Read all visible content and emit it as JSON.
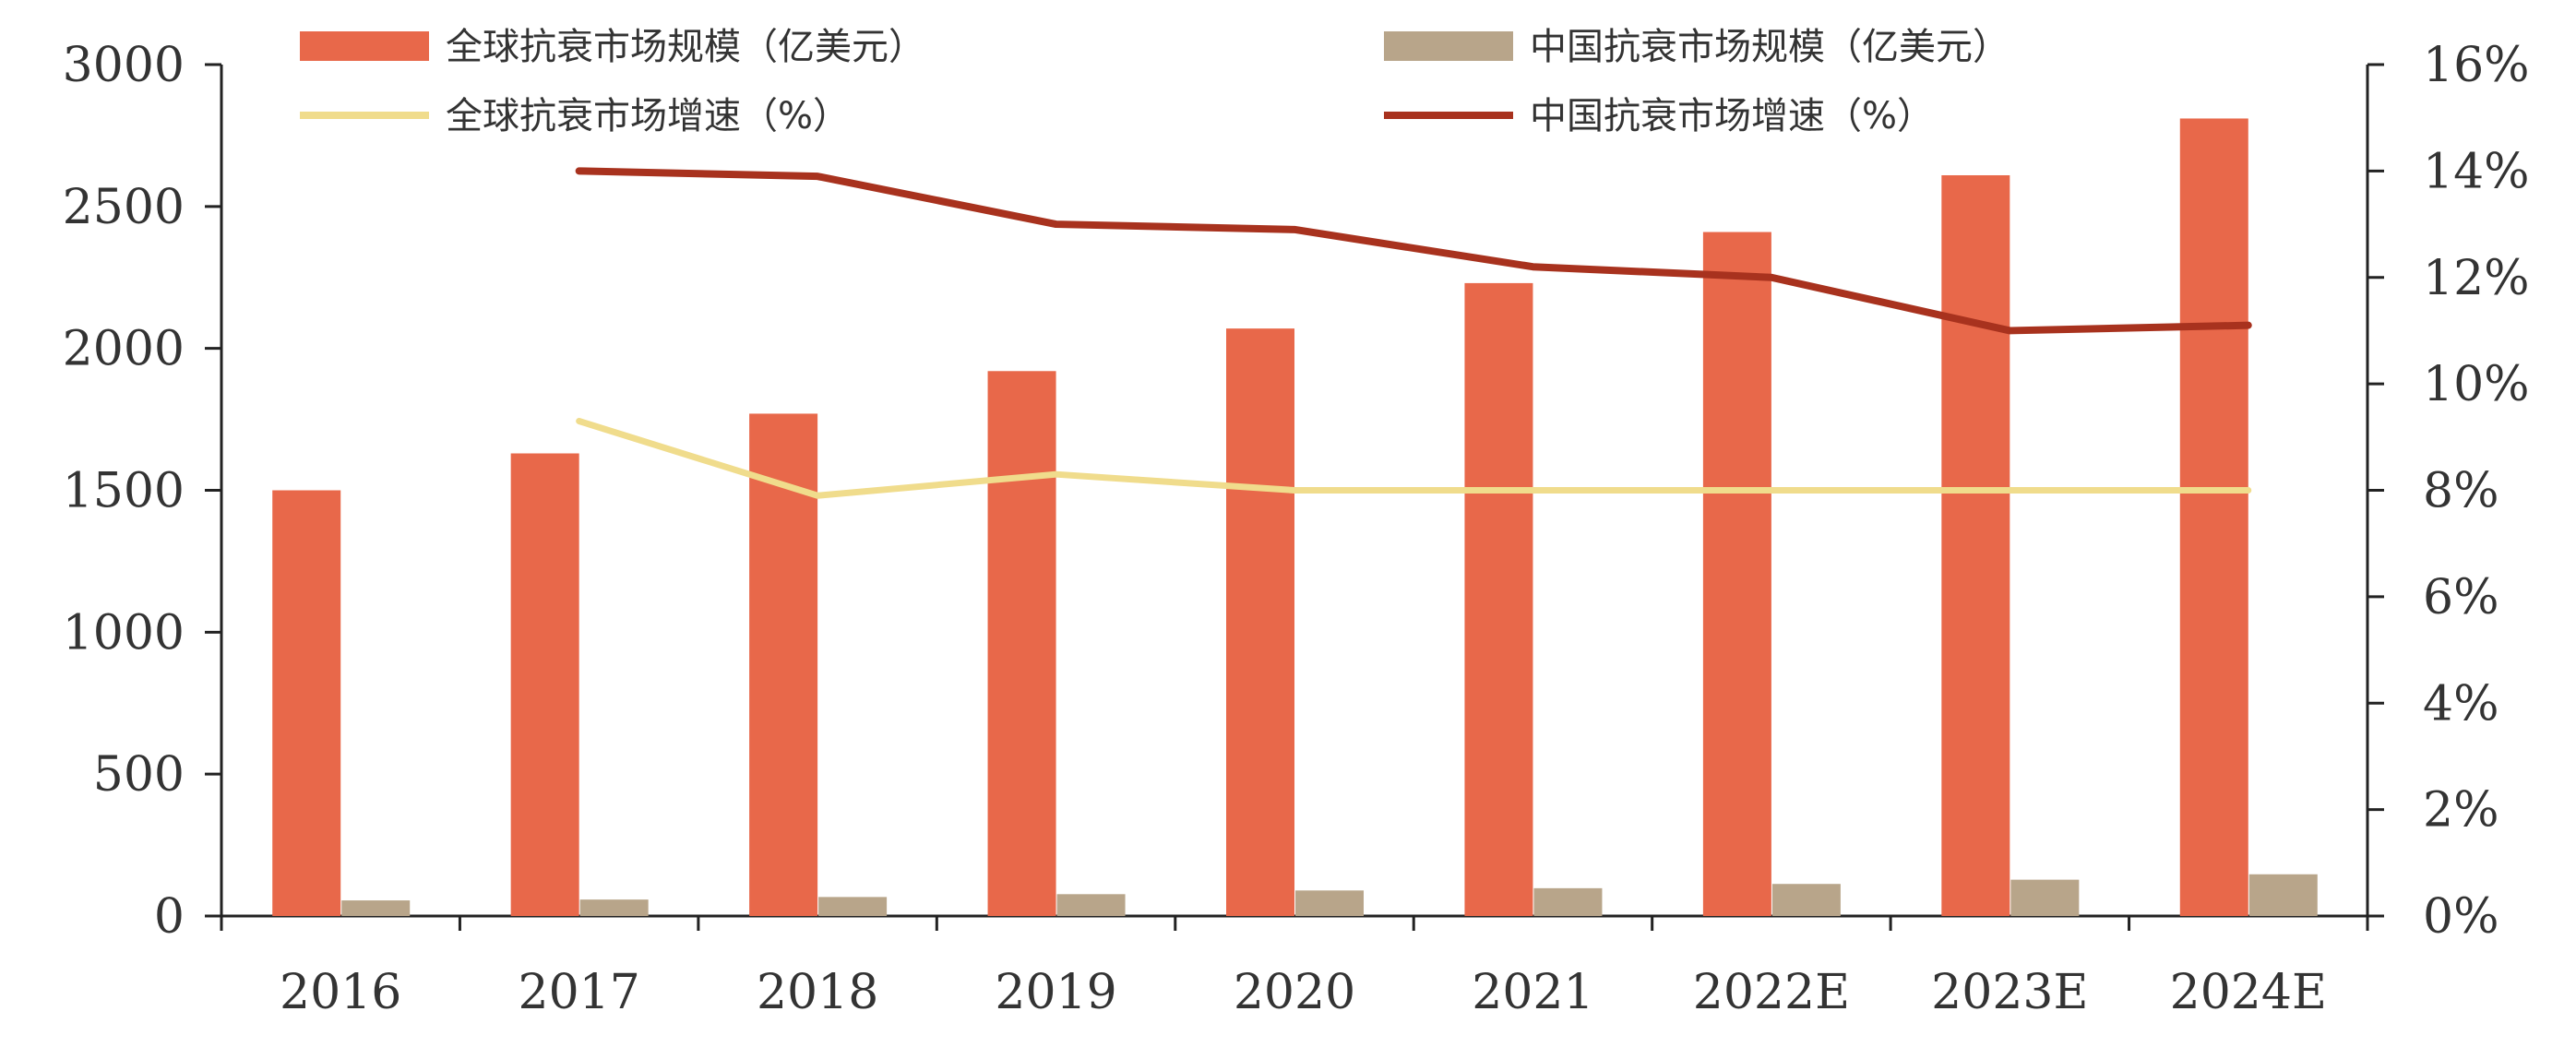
{
  "chart_data": {
    "type": "bar",
    "categories": [
      "2016",
      "2017",
      "2018",
      "2019",
      "2020",
      "2021",
      "2022E",
      "2023E",
      "2024E"
    ],
    "series": [
      {
        "name": "全球抗衰市场规模（亿美元）",
        "type": "bar",
        "axis": "left",
        "color": "#E8684A",
        "values": [
          1500,
          1630,
          1770,
          1920,
          2070,
          2230,
          2410,
          2610,
          2810
        ]
      },
      {
        "name": "中国抗衰市场规模（亿美元）",
        "type": "bar",
        "axis": "left",
        "color": "#B8A58A",
        "values": [
          55,
          58,
          67,
          77,
          90,
          98,
          113,
          128,
          147
        ]
      },
      {
        "name": "全球抗衰市场增速（%）",
        "type": "line",
        "axis": "right",
        "color": "#F0DC8C",
        "values": [
          null,
          9.3,
          7.9,
          8.3,
          8.0,
          8.0,
          8.0,
          8.0,
          8.0
        ]
      },
      {
        "name": "中国抗衰市场增速（%）",
        "type": "line",
        "axis": "right",
        "color": "#A8321E",
        "values": [
          null,
          14.0,
          13.9,
          13.0,
          12.9,
          12.2,
          12.0,
          11.0,
          11.1
        ]
      }
    ],
    "y_left": {
      "min": 0,
      "max": 3000,
      "ticks": [
        "0",
        "500",
        "1000",
        "1500",
        "2000",
        "2500",
        "3000"
      ]
    },
    "y_right": {
      "min": 0,
      "max": 16,
      "ticks": [
        "0%",
        "2%",
        "4%",
        "6%",
        "8%",
        "10%",
        "12%",
        "14%",
        "16%"
      ]
    },
    "grid": false,
    "legend_position": "top"
  }
}
